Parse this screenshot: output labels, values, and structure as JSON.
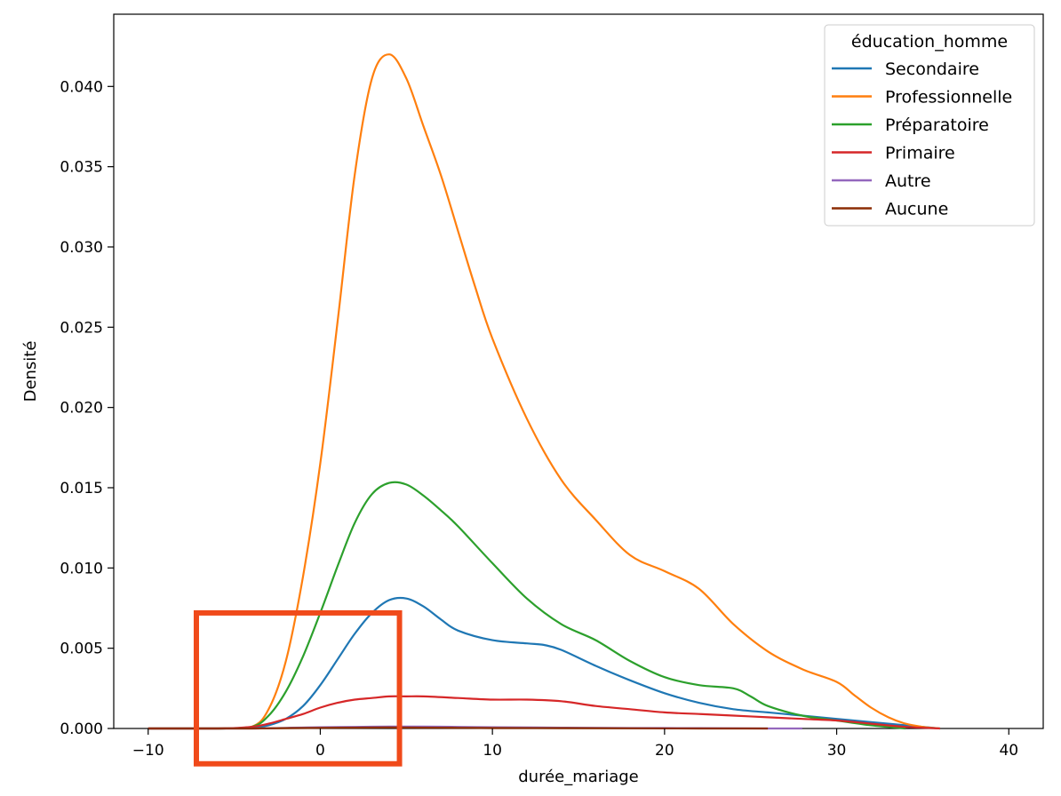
{
  "chart_data": {
    "type": "line",
    "title": "",
    "xlabel": "durée_mariage",
    "ylabel": "Densité",
    "xlim": [
      -12,
      42
    ],
    "ylim": [
      0,
      0.0445
    ],
    "xticks": [
      -10,
      0,
      10,
      20,
      30,
      40
    ],
    "xtick_labels": [
      "−10",
      "0",
      "10",
      "20",
      "30",
      "40"
    ],
    "yticks": [
      0,
      0.005,
      0.01,
      0.015,
      0.02,
      0.025,
      0.03,
      0.035,
      0.04
    ],
    "ytick_labels": [
      "0.000",
      "0.005",
      "0.010",
      "0.015",
      "0.020",
      "0.025",
      "0.030",
      "0.035",
      "0.040"
    ],
    "grid": false,
    "legend": {
      "title": "éducation_homme",
      "position": "top-right"
    },
    "series": [
      {
        "name": "Secondaire",
        "color": "#1f77b4",
        "x": [
          -10,
          -6,
          -4,
          -3,
          -2,
          -1,
          0,
          1,
          2,
          3,
          4,
          5,
          6,
          7,
          8,
          10,
          12,
          13,
          14,
          16,
          18,
          20,
          22,
          24,
          26,
          28,
          30,
          32,
          34,
          36
        ],
        "y": [
          0,
          0,
          5e-05,
          0.0002,
          0.0006,
          0.0014,
          0.0027,
          0.0043,
          0.0059,
          0.0072,
          0.008,
          0.0081,
          0.0076,
          0.0068,
          0.0061,
          0.0055,
          0.0053,
          0.0052,
          0.0049,
          0.0039,
          0.003,
          0.0022,
          0.0016,
          0.0012,
          0.001,
          0.0008,
          0.0006,
          0.0004,
          0.0002,
          0
        ]
      },
      {
        "name": "Professionnelle",
        "color": "#ff7f0e",
        "x": [
          -10,
          -6,
          -4,
          -3,
          -2,
          -1,
          0,
          1,
          2,
          3,
          4,
          5,
          6,
          7,
          8,
          9,
          10,
          12,
          14,
          16,
          18,
          20,
          22,
          24,
          26,
          28,
          30,
          31,
          32,
          33,
          34,
          35,
          36
        ],
        "y": [
          0,
          0,
          0.0001,
          0.0012,
          0.0042,
          0.0095,
          0.0165,
          0.0253,
          0.0345,
          0.0405,
          0.042,
          0.0405,
          0.0375,
          0.0345,
          0.031,
          0.0275,
          0.0243,
          0.0193,
          0.0155,
          0.013,
          0.0108,
          0.0098,
          0.0087,
          0.0065,
          0.0048,
          0.0037,
          0.0029,
          0.0021,
          0.0013,
          0.0007,
          0.0003,
          0.0001,
          0
        ]
      },
      {
        "name": "Préparatoire",
        "color": "#2ca02c",
        "x": [
          -10,
          -6,
          -4,
          -3,
          -2,
          -1,
          0,
          1,
          2,
          3,
          4,
          5,
          6,
          7,
          8,
          10,
          12,
          14,
          16,
          18,
          20,
          22,
          24,
          25,
          26,
          28,
          30,
          32,
          34
        ],
        "y": [
          0,
          0,
          0.0001,
          0.0008,
          0.0023,
          0.0045,
          0.0072,
          0.0101,
          0.0128,
          0.0146,
          0.0153,
          0.0152,
          0.0145,
          0.0136,
          0.0126,
          0.0103,
          0.0081,
          0.0065,
          0.0055,
          0.0042,
          0.0032,
          0.0027,
          0.0025,
          0.002,
          0.0014,
          0.0008,
          0.0005,
          0.0002,
          0
        ]
      },
      {
        "name": "Primaire",
        "color": "#d62728",
        "x": [
          -10,
          -6,
          -4,
          -3,
          -2,
          -1,
          0,
          1,
          2,
          3,
          4,
          5,
          6,
          8,
          10,
          12,
          14,
          16,
          18,
          20,
          22,
          24,
          26,
          28,
          30,
          32,
          34,
          36
        ],
        "y": [
          0,
          0,
          0.0001,
          0.0003,
          0.0006,
          0.0009,
          0.0013,
          0.0016,
          0.0018,
          0.0019,
          0.002,
          0.002,
          0.002,
          0.0019,
          0.0018,
          0.0018,
          0.0017,
          0.0014,
          0.0012,
          0.001,
          0.0009,
          0.0008,
          0.0007,
          0.0006,
          0.0005,
          0.0003,
          0.0001,
          0
        ]
      },
      {
        "name": "Autre",
        "color": "#9467bd",
        "x": [
          -10,
          -6,
          -4,
          -2,
          0,
          2,
          4,
          6,
          8,
          10,
          14,
          18,
          22,
          26,
          28
        ],
        "y": [
          0,
          0,
          0,
          4e-05,
          8e-05,
          0.0001,
          0.00012,
          0.00012,
          0.0001,
          8e-05,
          5e-05,
          3e-05,
          2e-05,
          0,
          0
        ]
      },
      {
        "name": "Aucune",
        "color": "#8c2d04",
        "x": [
          -10,
          -6,
          -4,
          -2,
          0,
          2,
          4,
          6,
          8,
          10,
          14,
          18,
          22,
          26
        ],
        "y": [
          0,
          0,
          0,
          2e-05,
          4e-05,
          5e-05,
          6e-05,
          5e-05,
          4e-05,
          3e-05,
          2e-05,
          1e-05,
          0,
          0
        ]
      }
    ],
    "highlight_box": {
      "x_range": [
        -7.2,
        4.6
      ],
      "y_range": [
        -0.0022,
        0.0072
      ],
      "color": "#f04a1a"
    }
  }
}
